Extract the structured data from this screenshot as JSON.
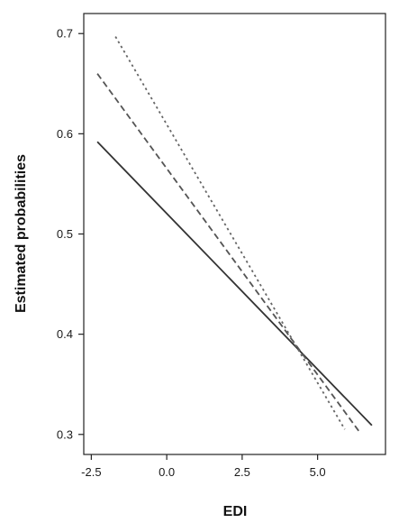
{
  "chart_data": {
    "type": "line",
    "title": "",
    "xlabel": "EDI",
    "ylabel": "Estimated probabilities",
    "xlim": [
      -2.75,
      7.25
    ],
    "ylim": [
      0.28,
      0.72
    ],
    "xticks": [
      -2.5,
      0.0,
      2.5,
      5.0
    ],
    "xtick_labels": [
      "-2.5",
      "0.0",
      "2.5",
      "5.0"
    ],
    "yticks": [
      0.3,
      0.4,
      0.5,
      0.6,
      0.7
    ],
    "ytick_labels": [
      "0.3",
      "0.4",
      "0.5",
      "0.6",
      "0.7"
    ],
    "grid": false,
    "legend": "none",
    "series": [
      {
        "style": "solid",
        "color": "#333333",
        "x": [
          -2.3,
          6.8
        ],
        "y": [
          0.592,
          0.309
        ]
      },
      {
        "style": "dashed",
        "color": "#555555",
        "x": [
          -2.3,
          6.4
        ],
        "y": [
          0.66,
          0.302
        ]
      },
      {
        "style": "dotted",
        "color": "#666666",
        "x": [
          -1.7,
          5.9
        ],
        "y": [
          0.697,
          0.305
        ]
      }
    ]
  }
}
